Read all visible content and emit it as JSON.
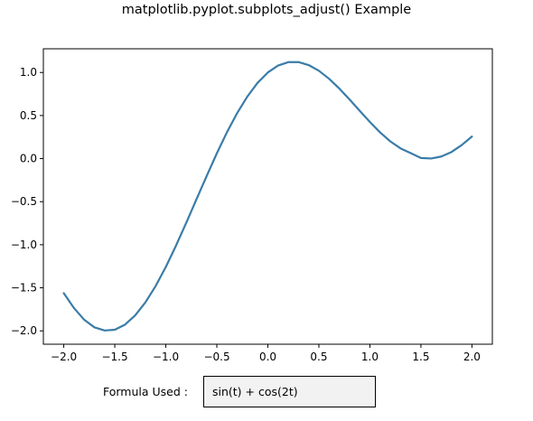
{
  "figure": {
    "title": "matplotlib.pyplot.subplots_adjust() Example"
  },
  "formula": {
    "label": "Formula Used :",
    "value": "sin(t) + cos(2t)"
  },
  "colors": {
    "line": "#3a7ca8",
    "axes": "#000000",
    "textbox_bg": "#f2f2f2"
  },
  "chart_data": {
    "type": "line",
    "title": "",
    "xlabel": "",
    "ylabel": "",
    "xlim": [
      -2.2,
      2.2
    ],
    "ylim": [
      -2.155,
      1.275
    ],
    "xticks": [
      -2.0,
      -1.5,
      -1.0,
      -0.5,
      0.0,
      0.5,
      1.0,
      1.5,
      2.0
    ],
    "xtick_labels": [
      "−2.0",
      "−1.5",
      "−1.0",
      "−0.5",
      "0.0",
      "0.5",
      "1.0",
      "1.5",
      "2.0"
    ],
    "yticks": [
      -2.0,
      -1.5,
      -1.0,
      -0.5,
      0.0,
      0.5,
      1.0
    ],
    "ytick_labels": [
      "−2.0",
      "−1.5",
      "−1.0",
      "−0.5",
      "0.0",
      "0.5",
      "1.0"
    ],
    "grid": false,
    "series": [
      {
        "x": [
          -2.0,
          -1.9,
          -1.8,
          -1.7,
          -1.6,
          -1.5,
          -1.4,
          -1.3,
          -1.2,
          -1.1,
          -1.0,
          -0.9,
          -0.8,
          -0.7,
          -0.6,
          -0.5,
          -0.4,
          -0.3,
          -0.2,
          -0.1,
          0.0,
          0.1,
          0.2,
          0.3,
          0.4,
          0.5,
          0.6,
          0.7,
          0.8,
          0.9,
          1.0,
          1.1,
          1.2,
          1.3,
          1.4,
          1.5,
          1.6,
          1.7,
          1.8,
          1.9,
          2.0
        ],
        "y": [
          -1.563,
          -1.735,
          -1.871,
          -1.959,
          -1.996,
          -1.987,
          -1.928,
          -1.82,
          -1.669,
          -1.48,
          -1.258,
          -1.01,
          -0.746,
          -0.474,
          -0.203,
          0.061,
          0.308,
          0.53,
          0.722,
          0.881,
          1.0,
          1.08,
          1.12,
          1.121,
          1.086,
          1.02,
          0.927,
          0.814,
          0.687,
          0.555,
          0.425,
          0.304,
          0.2,
          0.119,
          0.063,
          0.007,
          0.001,
          0.024,
          0.077,
          0.157,
          0.256
        ]
      }
    ]
  }
}
